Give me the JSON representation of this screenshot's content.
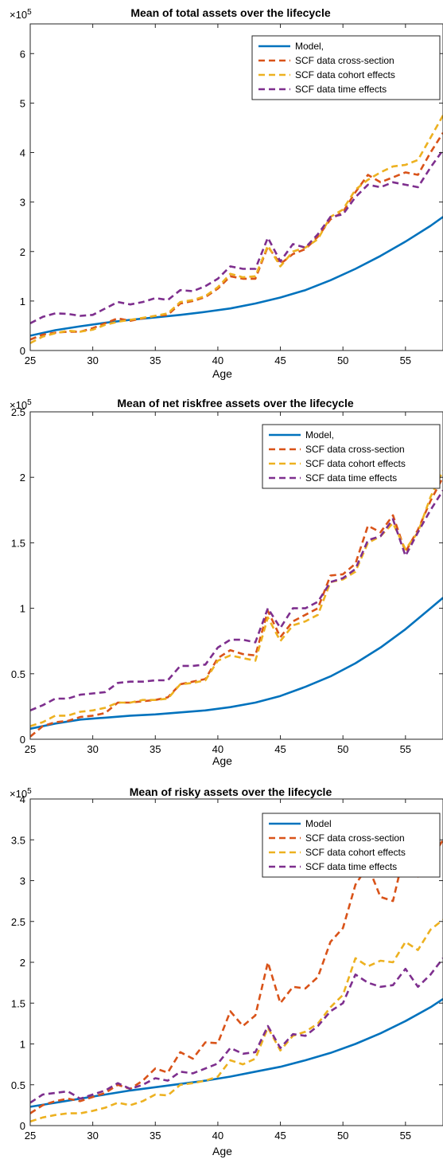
{
  "figure": {
    "background": "#ffffff"
  },
  "chart_data": [
    {
      "type": "line",
      "title": "Mean of total assets over the lifecycle",
      "xlabel": "Age",
      "ylabel": "",
      "y_multiplier_base": "×10",
      "y_multiplier_exp": "5",
      "xlim": [
        25,
        58
      ],
      "ylim": [
        0,
        6.6
      ],
      "x_ticks": [
        25,
        30,
        35,
        40,
        45,
        50,
        55
      ],
      "y_ticks": [
        0,
        1,
        2,
        3,
        4,
        5,
        6
      ],
      "grid": false,
      "legend_position": "top-right",
      "series": [
        {
          "name": "Model,",
          "color": "#0072BD",
          "dash": "solid",
          "x": [
            25,
            27,
            29,
            31,
            33,
            35,
            37,
            39,
            41,
            43,
            45,
            47,
            49,
            51,
            53,
            55,
            57,
            58
          ],
          "y": [
            0.3,
            0.41,
            0.49,
            0.56,
            0.62,
            0.67,
            0.72,
            0.78,
            0.85,
            0.95,
            1.07,
            1.22,
            1.42,
            1.65,
            1.91,
            2.2,
            2.52,
            2.7
          ]
        },
        {
          "name": "SCF data cross-section",
          "color": "#D95319",
          "dash": "dashed",
          "x": [
            25,
            26,
            27,
            28,
            29,
            30,
            31,
            32,
            33,
            34,
            35,
            36,
            37,
            38,
            39,
            40,
            41,
            42,
            43,
            44,
            45,
            46,
            47,
            48,
            49,
            50,
            51,
            52,
            53,
            54,
            55,
            56,
            57,
            58
          ],
          "y": [
            0.22,
            0.32,
            0.36,
            0.38,
            0.38,
            0.45,
            0.55,
            0.65,
            0.6,
            0.65,
            0.7,
            0.72,
            0.95,
            1.0,
            1.08,
            1.25,
            1.5,
            1.45,
            1.45,
            2.1,
            1.75,
            1.95,
            2.05,
            2.3,
            2.65,
            2.8,
            3.2,
            3.55,
            3.4,
            3.5,
            3.6,
            3.55,
            4.0,
            4.4
          ]
        },
        {
          "name": "SCF data cohort effects",
          "color": "#EDB120",
          "dash": "dashed",
          "x": [
            25,
            26,
            27,
            28,
            29,
            30,
            31,
            32,
            33,
            34,
            35,
            36,
            37,
            38,
            39,
            40,
            41,
            42,
            43,
            44,
            45,
            46,
            47,
            48,
            49,
            50,
            51,
            52,
            53,
            54,
            55,
            56,
            57,
            58
          ],
          "y": [
            0.15,
            0.28,
            0.35,
            0.4,
            0.38,
            0.42,
            0.52,
            0.58,
            0.62,
            0.66,
            0.7,
            0.75,
            0.98,
            1.02,
            1.1,
            1.28,
            1.55,
            1.48,
            1.5,
            2.12,
            1.7,
            2.0,
            2.08,
            2.25,
            2.7,
            2.85,
            3.25,
            3.45,
            3.6,
            3.72,
            3.75,
            3.85,
            4.3,
            4.75
          ]
        },
        {
          "name": "SCF data time effects",
          "color": "#7E2F8E",
          "dash": "dashed",
          "x": [
            25,
            26,
            27,
            28,
            29,
            30,
            31,
            32,
            33,
            34,
            35,
            36,
            37,
            38,
            39,
            40,
            41,
            42,
            43,
            44,
            45,
            46,
            47,
            48,
            49,
            50,
            51,
            52,
            53,
            54,
            55,
            56,
            57,
            58
          ],
          "y": [
            0.55,
            0.68,
            0.75,
            0.74,
            0.7,
            0.72,
            0.85,
            0.98,
            0.93,
            0.98,
            1.06,
            1.02,
            1.22,
            1.2,
            1.3,
            1.45,
            1.7,
            1.65,
            1.65,
            2.28,
            1.8,
            2.15,
            2.08,
            2.35,
            2.7,
            2.75,
            3.1,
            3.35,
            3.3,
            3.4,
            3.35,
            3.3,
            3.7,
            4.05
          ]
        }
      ]
    },
    {
      "type": "line",
      "title": "Mean of net riskfree assets over the lifecycle",
      "xlabel": "Age",
      "ylabel": "",
      "y_multiplier_base": "×10",
      "y_multiplier_exp": "5",
      "xlim": [
        25,
        58
      ],
      "ylim": [
        0,
        2.5
      ],
      "x_ticks": [
        25,
        30,
        35,
        40,
        45,
        50,
        55
      ],
      "y_ticks": [
        0,
        0.5,
        1,
        1.5,
        2,
        2.5
      ],
      "grid": false,
      "legend_position": "top-right",
      "series": [
        {
          "name": "Model,",
          "color": "#0072BD",
          "dash": "solid",
          "x": [
            25,
            27,
            29,
            31,
            33,
            35,
            37,
            39,
            41,
            43,
            45,
            47,
            49,
            51,
            53,
            55,
            57,
            58
          ],
          "y": [
            0.08,
            0.12,
            0.15,
            0.165,
            0.18,
            0.19,
            0.205,
            0.22,
            0.245,
            0.28,
            0.33,
            0.4,
            0.48,
            0.58,
            0.7,
            0.84,
            1.0,
            1.08
          ]
        },
        {
          "name": "SCF data cross-section",
          "color": "#D95319",
          "dash": "dashed",
          "x": [
            25,
            26,
            27,
            28,
            29,
            30,
            31,
            32,
            33,
            34,
            35,
            36,
            37,
            38,
            39,
            40,
            41,
            42,
            43,
            44,
            45,
            46,
            47,
            48,
            49,
            50,
            51,
            52,
            53,
            54,
            55,
            56,
            57,
            58
          ],
          "y": [
            0.02,
            0.1,
            0.13,
            0.14,
            0.17,
            0.18,
            0.2,
            0.28,
            0.28,
            0.29,
            0.3,
            0.32,
            0.42,
            0.44,
            0.46,
            0.62,
            0.68,
            0.65,
            0.64,
            0.98,
            0.78,
            0.9,
            0.95,
            1.0,
            1.25,
            1.26,
            1.34,
            1.63,
            1.58,
            1.71,
            1.43,
            1.6,
            1.82,
            2.0
          ]
        },
        {
          "name": "SCF data cohort effects",
          "color": "#EDB120",
          "dash": "dashed",
          "x": [
            25,
            26,
            27,
            28,
            29,
            30,
            31,
            32,
            33,
            34,
            35,
            36,
            37,
            38,
            39,
            40,
            41,
            42,
            43,
            44,
            45,
            46,
            47,
            48,
            49,
            50,
            51,
            52,
            53,
            54,
            55,
            56,
            57,
            58
          ],
          "y": [
            0.1,
            0.13,
            0.18,
            0.18,
            0.21,
            0.22,
            0.24,
            0.28,
            0.28,
            0.3,
            0.3,
            0.31,
            0.42,
            0.43,
            0.45,
            0.6,
            0.64,
            0.62,
            0.6,
            0.93,
            0.75,
            0.87,
            0.9,
            0.95,
            1.2,
            1.22,
            1.28,
            1.5,
            1.55,
            1.65,
            1.45,
            1.58,
            1.85,
            2.05
          ]
        },
        {
          "name": "SCF data time effects",
          "color": "#7E2F8E",
          "dash": "dashed",
          "x": [
            25,
            26,
            27,
            28,
            29,
            30,
            31,
            32,
            33,
            34,
            35,
            36,
            37,
            38,
            39,
            40,
            41,
            42,
            43,
            44,
            45,
            46,
            47,
            48,
            49,
            50,
            51,
            52,
            53,
            54,
            55,
            56,
            57,
            58
          ],
          "y": [
            0.22,
            0.26,
            0.31,
            0.31,
            0.34,
            0.35,
            0.36,
            0.43,
            0.44,
            0.44,
            0.45,
            0.45,
            0.56,
            0.56,
            0.57,
            0.7,
            0.76,
            0.76,
            0.74,
            1.0,
            0.85,
            1.0,
            1.0,
            1.05,
            1.2,
            1.23,
            1.3,
            1.52,
            1.55,
            1.68,
            1.4,
            1.58,
            1.75,
            1.9
          ]
        }
      ]
    },
    {
      "type": "line",
      "title": "Mean of risky assets  over the lifecycle",
      "xlabel": "Age",
      "ylabel": "",
      "y_multiplier_base": "×10",
      "y_multiplier_exp": "5",
      "xlim": [
        25,
        58
      ],
      "ylim": [
        0,
        4
      ],
      "x_ticks": [
        25,
        30,
        35,
        40,
        45,
        50,
        55
      ],
      "y_ticks": [
        0,
        0.5,
        1,
        1.5,
        2,
        2.5,
        3,
        3.5,
        4
      ],
      "grid": false,
      "legend_position": "top-right",
      "series": [
        {
          "name": "Model",
          "color": "#0072BD",
          "dash": "solid",
          "x": [
            25,
            27,
            29,
            31,
            33,
            35,
            37,
            39,
            41,
            43,
            45,
            47,
            49,
            51,
            53,
            55,
            57,
            58
          ],
          "y": [
            0.23,
            0.28,
            0.33,
            0.38,
            0.43,
            0.47,
            0.51,
            0.55,
            0.6,
            0.66,
            0.72,
            0.8,
            0.89,
            1.0,
            1.13,
            1.28,
            1.45,
            1.55
          ]
        },
        {
          "name": "SCF data cross-section",
          "color": "#D95319",
          "dash": "dashed",
          "x": [
            25,
            26,
            27,
            28,
            29,
            30,
            31,
            32,
            33,
            34,
            35,
            36,
            37,
            38,
            39,
            40,
            41,
            42,
            43,
            44,
            45,
            46,
            47,
            48,
            49,
            50,
            51,
            52,
            53,
            54,
            55,
            56,
            57,
            58
          ],
          "y": [
            0.15,
            0.25,
            0.3,
            0.33,
            0.3,
            0.35,
            0.4,
            0.5,
            0.45,
            0.55,
            0.7,
            0.65,
            0.9,
            0.82,
            1.02,
            1.01,
            1.4,
            1.22,
            1.35,
            2.0,
            1.5,
            1.7,
            1.68,
            1.82,
            2.25,
            2.42,
            2.95,
            3.18,
            2.8,
            2.75,
            3.4,
            3.05,
            3.25,
            3.5
          ]
        },
        {
          "name": "SCF data cohort effects",
          "color": "#EDB120",
          "dash": "dashed",
          "x": [
            25,
            26,
            27,
            28,
            29,
            30,
            31,
            32,
            33,
            34,
            35,
            36,
            37,
            38,
            39,
            40,
            41,
            42,
            43,
            44,
            45,
            46,
            47,
            48,
            49,
            50,
            51,
            52,
            53,
            54,
            55,
            56,
            57,
            58
          ],
          "y": [
            0.05,
            0.1,
            0.13,
            0.15,
            0.15,
            0.18,
            0.22,
            0.28,
            0.25,
            0.3,
            0.38,
            0.37,
            0.5,
            0.52,
            0.55,
            0.6,
            0.8,
            0.75,
            0.82,
            1.2,
            0.92,
            1.1,
            1.15,
            1.25,
            1.45,
            1.6,
            2.05,
            1.95,
            2.02,
            2.0,
            2.25,
            2.15,
            2.4,
            2.52
          ]
        },
        {
          "name": "SCF data time effects",
          "color": "#7E2F8E",
          "dash": "dashed",
          "x": [
            25,
            26,
            27,
            28,
            29,
            30,
            31,
            32,
            33,
            34,
            35,
            36,
            37,
            38,
            39,
            40,
            41,
            42,
            43,
            44,
            45,
            46,
            47,
            48,
            49,
            50,
            51,
            52,
            53,
            54,
            55,
            56,
            57,
            58
          ],
          "y": [
            0.28,
            0.38,
            0.4,
            0.42,
            0.33,
            0.38,
            0.43,
            0.52,
            0.45,
            0.5,
            0.58,
            0.55,
            0.66,
            0.64,
            0.7,
            0.76,
            0.95,
            0.88,
            0.9,
            1.22,
            0.95,
            1.12,
            1.1,
            1.22,
            1.4,
            1.5,
            1.85,
            1.75,
            1.7,
            1.72,
            1.92,
            1.7,
            1.85,
            2.05
          ]
        }
      ]
    }
  ]
}
